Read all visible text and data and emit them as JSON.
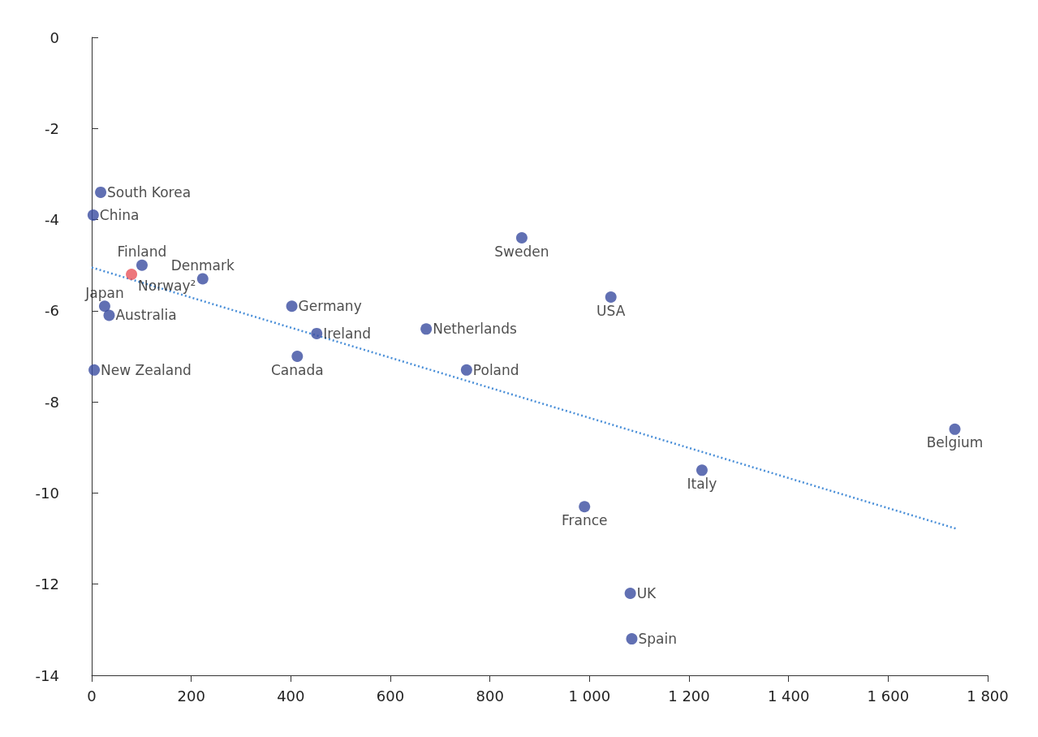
{
  "chart_data": {
    "type": "scatter",
    "grid": false,
    "marker": "circle",
    "xlim": [
      0,
      1800
    ],
    "ylim": [
      -14,
      0
    ],
    "xticks": [
      0,
      200,
      400,
      600,
      800,
      {
        "value": 1000,
        "label": "1 000"
      },
      {
        "value": 1200,
        "label": "1 200"
      },
      {
        "value": 1400,
        "label": "1 400"
      },
      {
        "value": 1600,
        "label": "1 600"
      },
      {
        "value": 1800,
        "label": "1 800"
      }
    ],
    "yticks": [
      -14,
      -12,
      -10,
      -8,
      -6,
      -4,
      -2,
      0
    ],
    "series": [
      {
        "color": "#3a4ca0",
        "x": [
          18,
          3,
          101,
          223,
          26,
          35,
          5,
          402,
          452,
          413,
          672,
          753,
          864,
          1043,
          990,
          1226,
          1734,
          1082,
          1085
        ],
        "values": [
          -3.4,
          -3.9,
          -5.0,
          -5.3,
          -5.9,
          -6.1,
          -7.3,
          -5.9,
          -6.5,
          -7.0,
          -6.4,
          -7.3,
          -4.4,
          -5.7,
          -10.3,
          -9.5,
          -8.6,
          -12.2,
          -13.2
        ]
      },
      {
        "color": "#e8545a",
        "x": [
          80
        ],
        "values": [
          -5.2
        ]
      },
      {
        "type": "line",
        "color": "#4a8fd8",
        "line_style": "dotted",
        "marker": "none",
        "x": [
          0,
          1736
        ],
        "values": [
          -5.05,
          -10.78
        ]
      }
    ],
    "annotations": [
      {
        "text": "South Korea",
        "x": 18,
        "y": -3.4
      },
      {
        "text": "China",
        "x": 3,
        "y": -3.9
      },
      {
        "text": "Finland",
        "x": 101,
        "y": -5.0
      },
      {
        "text": "Norway²",
        "x": 80,
        "y": -5.2
      },
      {
        "text": "Denmark",
        "x": 223,
        "y": -5.3
      },
      {
        "text": "Japan",
        "x": 26,
        "y": -5.9
      },
      {
        "text": "Australia",
        "x": 35,
        "y": -6.1
      },
      {
        "text": "New Zealand",
        "x": 5,
        "y": -7.3
      },
      {
        "text": "Germany",
        "x": 402,
        "y": -5.9
      },
      {
        "text": "Ireland",
        "x": 452,
        "y": -6.5
      },
      {
        "text": "Canada",
        "x": 413,
        "y": -7.0
      },
      {
        "text": "Netherlands",
        "x": 672,
        "y": -6.4
      },
      {
        "text": "Poland",
        "x": 753,
        "y": -7.3
      },
      {
        "text": "Sweden",
        "x": 864,
        "y": -4.4
      },
      {
        "text": "USA",
        "x": 1043,
        "y": -5.7
      },
      {
        "text": "France",
        "x": 990,
        "y": -10.3
      },
      {
        "text": "Italy",
        "x": 1226,
        "y": -9.5
      },
      {
        "text": "Belgium",
        "x": 1734,
        "y": -8.6
      },
      {
        "text": "UK",
        "x": 1082,
        "y": -12.2
      },
      {
        "text": "Spain",
        "x": 1085,
        "y": -13.2
      }
    ]
  }
}
